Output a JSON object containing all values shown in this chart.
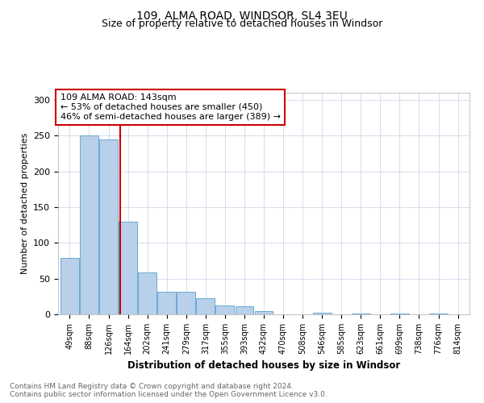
{
  "title1": "109, ALMA ROAD, WINDSOR, SL4 3EU",
  "title2": "Size of property relative to detached houses in Windsor",
  "xlabel": "Distribution of detached houses by size in Windsor",
  "ylabel": "Number of detached properties",
  "categories": [
    "49sqm",
    "88sqm",
    "126sqm",
    "164sqm",
    "202sqm",
    "241sqm",
    "279sqm",
    "317sqm",
    "355sqm",
    "393sqm",
    "432sqm",
    "470sqm",
    "508sqm",
    "546sqm",
    "585sqm",
    "623sqm",
    "661sqm",
    "699sqm",
    "738sqm",
    "776sqm",
    "814sqm"
  ],
  "values": [
    79,
    250,
    245,
    130,
    59,
    32,
    32,
    23,
    12,
    11,
    4,
    0,
    0,
    2,
    0,
    1,
    0,
    1,
    0,
    1,
    0
  ],
  "bar_color": "#b8d0ea",
  "bar_edge_color": "#6aaad4",
  "red_line_x": 2.62,
  "annotation_title": "109 ALMA ROAD: 143sqm",
  "annotation_line1": "← 53% of detached houses are smaller (450)",
  "annotation_line2": "46% of semi-detached houses are larger (389) →",
  "red_line_color": "#cc0000",
  "box_edge_color": "#cc0000",
  "grid_color": "#d0d8e8",
  "footnote1": "Contains HM Land Registry data © Crown copyright and database right 2024.",
  "footnote2": "Contains public sector information licensed under the Open Government Licence v3.0.",
  "ylim": [
    0,
    310
  ],
  "yticks": [
    0,
    50,
    100,
    150,
    200,
    250,
    300
  ]
}
